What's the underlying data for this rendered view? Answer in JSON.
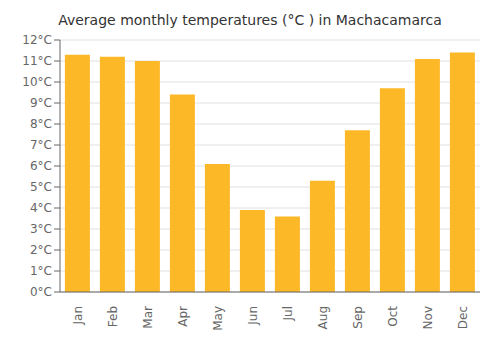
{
  "chart_data": {
    "type": "bar",
    "title": "Average monthly temperatures (°C ) in Machacamarca",
    "categories": [
      "Jan",
      "Feb",
      "Mar",
      "Apr",
      "May",
      "Jun",
      "Jul",
      "Aug",
      "Sep",
      "Oct",
      "Nov",
      "Dec"
    ],
    "values": [
      11.3,
      11.2,
      11.0,
      9.4,
      6.1,
      3.9,
      3.6,
      5.3,
      7.7,
      9.7,
      11.1,
      11.4
    ],
    "color": "#FDB827",
    "ylim": [
      0,
      12
    ],
    "yticks": [
      {
        "value": 0,
        "label": "0°C"
      },
      {
        "value": 1,
        "label": "1°C"
      },
      {
        "value": 2,
        "label": "2°C"
      },
      {
        "value": 3,
        "label": "3°C"
      },
      {
        "value": 4,
        "label": "4°C"
      },
      {
        "value": 5,
        "label": "5°C"
      },
      {
        "value": 6,
        "label": "6°C"
      },
      {
        "value": 7,
        "label": "7°C"
      },
      {
        "value": 8,
        "label": "8°C"
      },
      {
        "value": 9,
        "label": "9°C"
      },
      {
        "value": 10,
        "label": "10°C"
      },
      {
        "value": 11,
        "label": "11°C"
      },
      {
        "value": 12,
        "label": "12°C"
      }
    ],
    "grid": true
  }
}
